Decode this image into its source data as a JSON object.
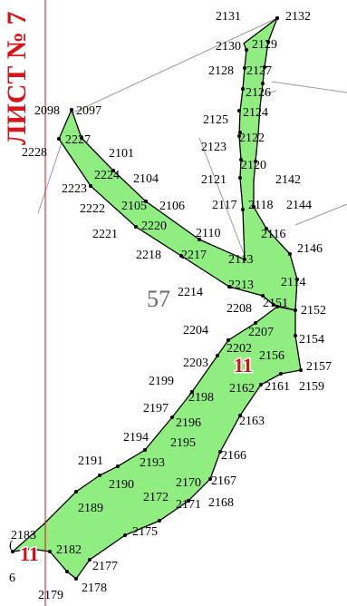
{
  "sheet_title": "ЛИСТ № 7",
  "block_number": "57",
  "zone_labels": [
    "11",
    "11"
  ],
  "partial_labels": [
    "(",
    "6"
  ],
  "colors": {
    "fill": "#90ee80",
    "outline": "#000000",
    "frame_line": "#d7141a",
    "aux_lines": "#9a9a9a",
    "sheet_title": "#d7141a",
    "zone_label": "#c8141a"
  },
  "points": [
    "2131",
    "2132",
    "2130",
    "2129",
    "2128",
    "2127",
    "2126",
    "2124",
    "2125",
    "2122",
    "2123",
    "2120",
    "2121",
    "2142",
    "2117",
    "2118",
    "2144",
    "2116",
    "2146",
    "2114",
    "2098",
    "2097",
    "2227",
    "2228",
    "2101",
    "2224",
    "2104",
    "2223",
    "2105",
    "2106",
    "2222",
    "2220",
    "2221",
    "2110",
    "2218",
    "2217",
    "2113",
    "2213",
    "2214",
    "2208",
    "2151",
    "2152",
    "2204",
    "2207",
    "2154",
    "2202",
    "2156",
    "2157",
    "2203",
    "2159",
    "2161",
    "2162",
    "2199",
    "2198",
    "2197",
    "2163",
    "2196",
    "2194",
    "2195",
    "2166",
    "2193",
    "2191",
    "2167",
    "2190",
    "2170",
    "2172",
    "2168",
    "2171",
    "2189",
    "2175",
    "2183",
    "2182",
    "2177",
    "2179",
    "2178"
  ]
}
